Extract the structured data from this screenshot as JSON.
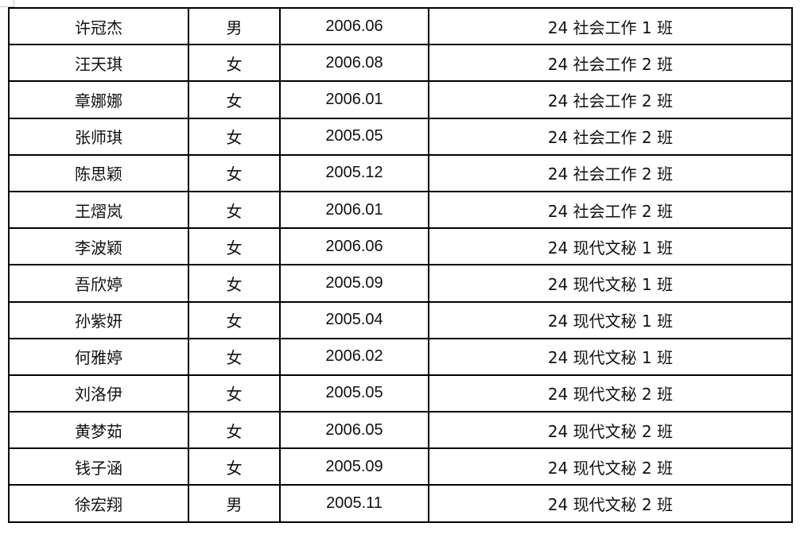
{
  "table": {
    "rows": [
      [
        "许冠杰",
        "男",
        "2006.06",
        "24 社会工作 1 班"
      ],
      [
        "汪天琪",
        "女",
        "2006.08",
        "24 社会工作 2 班"
      ],
      [
        "章娜娜",
        "女",
        "2006.01",
        "24 社会工作 2 班"
      ],
      [
        "张师琪",
        "女",
        "2005.05",
        "24 社会工作 2 班"
      ],
      [
        "陈思颖",
        "女",
        "2005.12",
        "24 社会工作 2 班"
      ],
      [
        "王熠岚",
        "女",
        "2006.01",
        "24 社会工作 2 班"
      ],
      [
        "李波颖",
        "女",
        "2006.06",
        "24 现代文秘 1 班"
      ],
      [
        "吾欣婷",
        "女",
        "2005.09",
        "24 现代文秘 1 班"
      ],
      [
        "孙紫妍",
        "女",
        "2005.04",
        "24 现代文秘 1 班"
      ],
      [
        "何雅婷",
        "女",
        "2006.02",
        "24 现代文秘 1 班"
      ],
      [
        "刘洛伊",
        "女",
        "2005.05",
        "24 现代文秘 2 班"
      ],
      [
        "黄梦茹",
        "女",
        "2006.05",
        "24 现代文秘 2 班"
      ],
      [
        "钱子涵",
        "女",
        "2005.09",
        "24 现代文秘 2 班"
      ],
      [
        "徐宏翔",
        "男",
        "2005.11",
        "24 现代文秘 2 班"
      ]
    ]
  }
}
